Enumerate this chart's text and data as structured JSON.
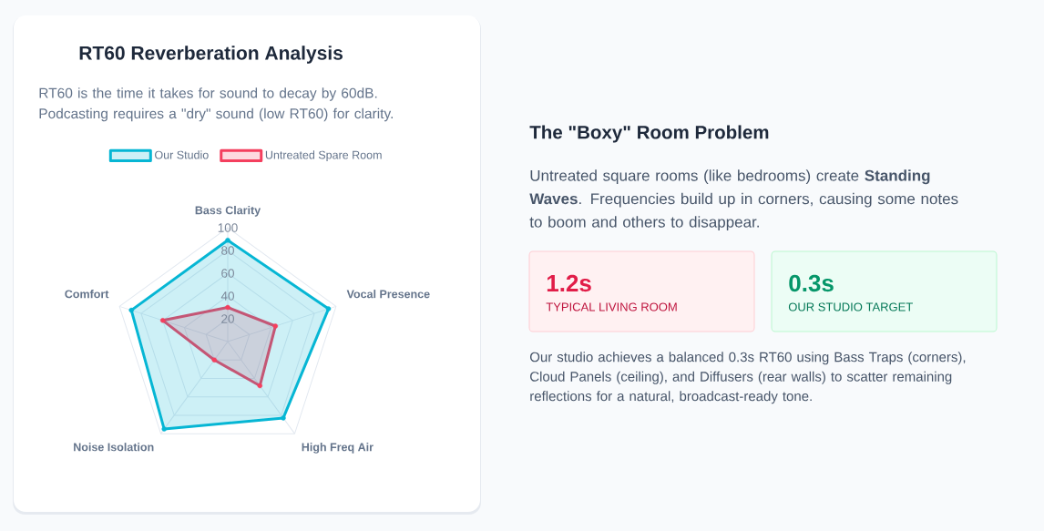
{
  "chart_data": [
    {
      "type": "radar",
      "title": "RT60 Reverberation Analysis",
      "subtitle": "RT60 is the time it takes for sound to decay by 60dB. Podcasting requires a \"dry\" sound (low RT60) for clarity.",
      "categories": [
        "Bass Clarity",
        "Vocal Presence",
        "High Freq Air",
        "Noise Isolation",
        "Comfort"
      ],
      "series": [
        {
          "name": "Our Studio",
          "color": "#06b6d4",
          "values": [
            89,
            93,
            83,
            95,
            89
          ]
        },
        {
          "name": "Untreated Spare Room",
          "color": "#f43f5e",
          "values": [
            30,
            44,
            48,
            20,
            60
          ]
        }
      ],
      "ylim": [
        0,
        100
      ],
      "yticks": [
        20,
        40,
        60,
        80,
        100
      ],
      "grid": true,
      "legend": "top",
      "marker": "circle"
    },
    {
      "type": "other",
      "title": "The \"Boxy\" Room Problem",
      "subtitle": "Untreated square rooms (like bedrooms) create **Standing Waves**. Frequencies build up in corners, causing some notes to boom and others to disappear.",
      "annotations": [
        "1.2s",
        "TYPICAL LIVING ROOM",
        "0.3s",
        "OUR STUDIO TARGET",
        "Our studio achieves a balanced 0.3s RT60 using Bass Traps (corners), Cloud Panels (ceiling), and Diffusers (rear walls) to scatter remaining reflections for a natural, broadcast-ready tone."
      ]
    }
  ]
}
